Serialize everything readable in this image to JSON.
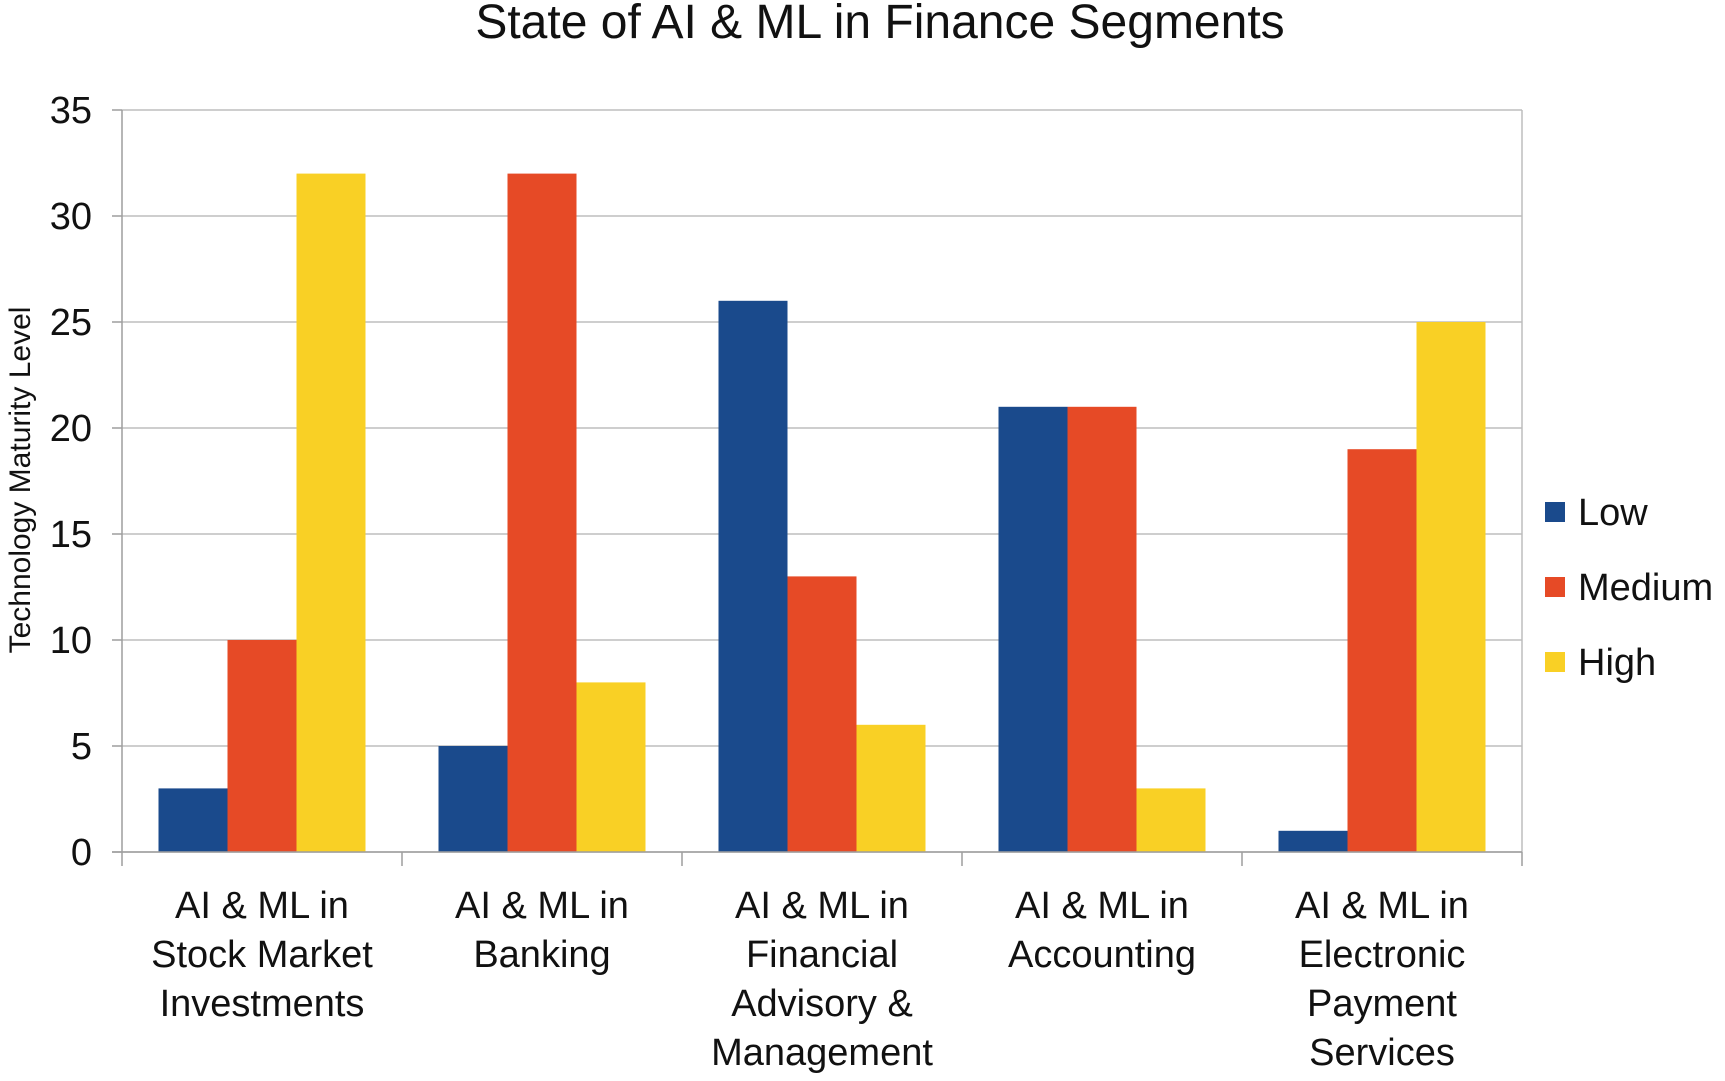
{
  "chart_data": {
    "type": "bar",
    "title": "State of AI & ML in Finance Segments",
    "xlabel": "",
    "ylabel": "Technology Maturity  Level",
    "ylim": [
      0,
      35
    ],
    "yticks": [
      0,
      5,
      10,
      15,
      20,
      25,
      30,
      35
    ],
    "grid": true,
    "legend_position": "right",
    "categories": [
      [
        "AI & ML in",
        "Stock Market",
        "Investments"
      ],
      [
        "AI & ML in",
        "Banking"
      ],
      [
        "AI & ML in",
        "Financial",
        "Advisory &",
        "Management"
      ],
      [
        "AI & ML in",
        "Accounting"
      ],
      [
        "AI   & ML in",
        "Electronic",
        "Payment",
        "Services"
      ]
    ],
    "series": [
      {
        "name": "Low",
        "color": "#1a4a8c",
        "values": [
          3,
          5,
          26,
          21,
          1
        ]
      },
      {
        "name": "Medium",
        "color": "#e64a26",
        "values": [
          10,
          32,
          13,
          21,
          19
        ]
      },
      {
        "name": "High",
        "color": "#f9d025",
        "values": [
          32,
          8,
          6,
          3,
          25
        ]
      }
    ]
  }
}
